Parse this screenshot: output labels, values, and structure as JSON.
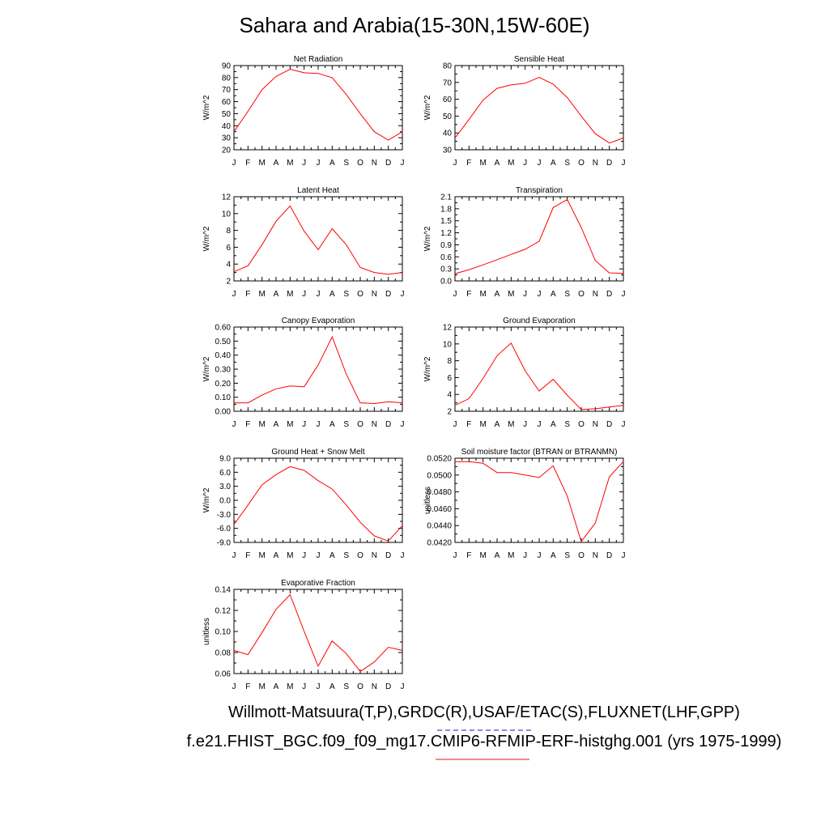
{
  "title": "Sahara and Arabia(15-30N,15W-60E)",
  "footer": {
    "line1": "Willmott-Matsuura(T,P),GRDC(R),USAF/ETAC(S),FLUXNET(LHF,GPP)",
    "line2": "f.e21.FHIST_BGC.f09_f09_mg17.CMIP6-RFMIP-ERF-histghg.001 (yrs 1975-1999)"
  },
  "colors": {
    "line": "#ff0000",
    "axis": "#000000",
    "underline_blue": "#8a8cd8",
    "underline_red": "#f08a8a"
  },
  "chart_data": [
    {
      "type": "line",
      "title": "Net Radiation",
      "ylabel": "W/m^2",
      "categories": [
        "J",
        "F",
        "M",
        "A",
        "M",
        "J",
        "J",
        "A",
        "S",
        "O",
        "N",
        "D",
        "J"
      ],
      "ylim": [
        20,
        90
      ],
      "yticks": [
        "20",
        "30",
        "40",
        "50",
        "60",
        "70",
        "80",
        "90"
      ],
      "values": [
        35,
        52,
        70,
        81,
        87,
        84,
        83.5,
        80,
        66,
        50,
        35,
        28,
        35
      ]
    },
    {
      "type": "line",
      "title": "Sensible Heat",
      "ylabel": "W/m^2",
      "categories": [
        "J",
        "F",
        "M",
        "A",
        "M",
        "J",
        "J",
        "A",
        "S",
        "O",
        "N",
        "D",
        "J"
      ],
      "ylim": [
        30,
        80
      ],
      "yticks": [
        "30",
        "40",
        "50",
        "60",
        "70",
        "80"
      ],
      "values": [
        37,
        48,
        59.5,
        66.5,
        68.5,
        69.5,
        73,
        69,
        61,
        50,
        39.5,
        34,
        37
      ]
    },
    {
      "type": "line",
      "title": "Latent Heat",
      "ylabel": "W/m^2",
      "categories": [
        "J",
        "F",
        "M",
        "A",
        "M",
        "J",
        "J",
        "A",
        "S",
        "O",
        "N",
        "D",
        "J"
      ],
      "ylim": [
        2,
        12
      ],
      "yticks": [
        "2",
        "4",
        "6",
        "8",
        "10",
        "12"
      ],
      "values": [
        3.1,
        3.8,
        6.3,
        9.1,
        10.9,
        7.9,
        5.7,
        8.2,
        6.3,
        3.6,
        3.0,
        2.8,
        3.0
      ]
    },
    {
      "type": "line",
      "title": "Transpiration",
      "ylabel": "W/m^2",
      "categories": [
        "J",
        "F",
        "M",
        "A",
        "M",
        "J",
        "J",
        "A",
        "S",
        "O",
        "N",
        "D",
        "J"
      ],
      "ylim": [
        0,
        2.1
      ],
      "yticks": [
        "0.0",
        "0.3",
        "0.6",
        "0.9",
        "1.2",
        "1.5",
        "1.8",
        "2.1"
      ],
      "values": [
        0.18,
        0.28,
        0.4,
        0.53,
        0.66,
        0.79,
        0.99,
        1.83,
        2.03,
        1.33,
        0.51,
        0.2,
        0.19
      ]
    },
    {
      "type": "line",
      "title": "Canopy Evaporation",
      "ylabel": "W/m^2",
      "categories": [
        "J",
        "F",
        "M",
        "A",
        "M",
        "J",
        "J",
        "A",
        "S",
        "O",
        "N",
        "D",
        "J"
      ],
      "ylim": [
        0,
        0.6
      ],
      "yticks": [
        "0.00",
        "0.10",
        "0.20",
        "0.30",
        "0.40",
        "0.50",
        "0.60"
      ],
      "values": [
        0.06,
        0.06,
        0.115,
        0.16,
        0.18,
        0.175,
        0.33,
        0.53,
        0.265,
        0.06,
        0.055,
        0.068,
        0.06
      ]
    },
    {
      "type": "line",
      "title": "Ground Evaporation",
      "ylabel": "W/m^2",
      "categories": [
        "J",
        "F",
        "M",
        "A",
        "M",
        "J",
        "J",
        "A",
        "S",
        "O",
        "N",
        "D",
        "J"
      ],
      "ylim": [
        2,
        12
      ],
      "yticks": [
        "2",
        "4",
        "6",
        "8",
        "10",
        "12"
      ],
      "values": [
        2.7,
        3.5,
        5.9,
        8.6,
        10.1,
        6.8,
        4.4,
        5.8,
        3.9,
        2.2,
        2.3,
        2.5,
        2.7
      ]
    },
    {
      "type": "line",
      "title": "Ground Heat + Snow Melt",
      "ylabel": "W/m^2",
      "categories": [
        "J",
        "F",
        "M",
        "A",
        "M",
        "J",
        "J",
        "A",
        "S",
        "O",
        "N",
        "D",
        "J"
      ],
      "ylim": [
        -9,
        9
      ],
      "yticks": [
        "-9.0",
        "-6.0",
        "-3.0",
        "0.0",
        "3.0",
        "6.0",
        "9.0"
      ],
      "values": [
        -5.2,
        -1.0,
        3.3,
        5.5,
        7.2,
        6.4,
        4.2,
        2.4,
        -1.0,
        -4.7,
        -7.6,
        -8.7,
        -5.4
      ]
    },
    {
      "type": "line",
      "title": "Soil moisture factor (BTRAN or BTRANMN)",
      "ylabel": "unitless",
      "categories": [
        "J",
        "F",
        "M",
        "A",
        "M",
        "J",
        "J",
        "A",
        "S",
        "O",
        "N",
        "D",
        "J"
      ],
      "ylim": [
        0.042,
        0.052
      ],
      "yticks": [
        "0.0420",
        "0.0440",
        "0.0460",
        "0.0480",
        "0.0500",
        "0.0520"
      ],
      "values": [
        0.0516,
        0.0516,
        0.0514,
        0.0503,
        0.0503,
        0.05,
        0.0497,
        0.0511,
        0.0475,
        0.0421,
        0.0443,
        0.0498,
        0.0516
      ]
    },
    {
      "type": "line",
      "title": "Evaporative Fraction",
      "ylabel": "unitless",
      "categories": [
        "J",
        "F",
        "M",
        "A",
        "M",
        "J",
        "J",
        "A",
        "S",
        "O",
        "N",
        "D",
        "J"
      ],
      "ylim": [
        0.06,
        0.14
      ],
      "yticks": [
        "0.06",
        "0.08",
        "0.10",
        "0.12",
        "0.14"
      ],
      "values": [
        0.082,
        0.078,
        0.099,
        0.121,
        0.135,
        0.1,
        0.067,
        0.091,
        0.079,
        0.062,
        0.071,
        0.085,
        0.082
      ]
    }
  ]
}
